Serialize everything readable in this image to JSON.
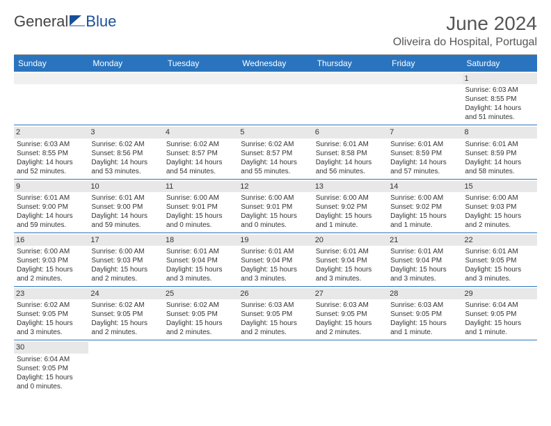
{
  "logo": {
    "text1": "General",
    "text2": "Blue"
  },
  "title": "June 2024",
  "subtitle": "Oliveira do Hospital, Portugal",
  "calendar": {
    "header_bg": "#2a74bf",
    "header_fg": "#ffffff",
    "day_bg": "#e8e8e8",
    "border_color": "#2a74bf",
    "headers": [
      "Sunday",
      "Monday",
      "Tuesday",
      "Wednesday",
      "Thursday",
      "Friday",
      "Saturday"
    ],
    "weeks": [
      [
        {
          "empty": true
        },
        {
          "empty": true
        },
        {
          "empty": true
        },
        {
          "empty": true
        },
        {
          "empty": true
        },
        {
          "empty": true
        },
        {
          "day": "1",
          "sunrise": "Sunrise: 6:03 AM",
          "sunset": "Sunset: 8:55 PM",
          "daylight": "Daylight: 14 hours and 51 minutes."
        }
      ],
      [
        {
          "day": "2",
          "sunrise": "Sunrise: 6:03 AM",
          "sunset": "Sunset: 8:55 PM",
          "daylight": "Daylight: 14 hours and 52 minutes."
        },
        {
          "day": "3",
          "sunrise": "Sunrise: 6:02 AM",
          "sunset": "Sunset: 8:56 PM",
          "daylight": "Daylight: 14 hours and 53 minutes."
        },
        {
          "day": "4",
          "sunrise": "Sunrise: 6:02 AM",
          "sunset": "Sunset: 8:57 PM",
          "daylight": "Daylight: 14 hours and 54 minutes."
        },
        {
          "day": "5",
          "sunrise": "Sunrise: 6:02 AM",
          "sunset": "Sunset: 8:57 PM",
          "daylight": "Daylight: 14 hours and 55 minutes."
        },
        {
          "day": "6",
          "sunrise": "Sunrise: 6:01 AM",
          "sunset": "Sunset: 8:58 PM",
          "daylight": "Daylight: 14 hours and 56 minutes."
        },
        {
          "day": "7",
          "sunrise": "Sunrise: 6:01 AM",
          "sunset": "Sunset: 8:59 PM",
          "daylight": "Daylight: 14 hours and 57 minutes."
        },
        {
          "day": "8",
          "sunrise": "Sunrise: 6:01 AM",
          "sunset": "Sunset: 8:59 PM",
          "daylight": "Daylight: 14 hours and 58 minutes."
        }
      ],
      [
        {
          "day": "9",
          "sunrise": "Sunrise: 6:01 AM",
          "sunset": "Sunset: 9:00 PM",
          "daylight": "Daylight: 14 hours and 59 minutes."
        },
        {
          "day": "10",
          "sunrise": "Sunrise: 6:01 AM",
          "sunset": "Sunset: 9:00 PM",
          "daylight": "Daylight: 14 hours and 59 minutes."
        },
        {
          "day": "11",
          "sunrise": "Sunrise: 6:00 AM",
          "sunset": "Sunset: 9:01 PM",
          "daylight": "Daylight: 15 hours and 0 minutes."
        },
        {
          "day": "12",
          "sunrise": "Sunrise: 6:00 AM",
          "sunset": "Sunset: 9:01 PM",
          "daylight": "Daylight: 15 hours and 0 minutes."
        },
        {
          "day": "13",
          "sunrise": "Sunrise: 6:00 AM",
          "sunset": "Sunset: 9:02 PM",
          "daylight": "Daylight: 15 hours and 1 minute."
        },
        {
          "day": "14",
          "sunrise": "Sunrise: 6:00 AM",
          "sunset": "Sunset: 9:02 PM",
          "daylight": "Daylight: 15 hours and 1 minute."
        },
        {
          "day": "15",
          "sunrise": "Sunrise: 6:00 AM",
          "sunset": "Sunset: 9:03 PM",
          "daylight": "Daylight: 15 hours and 2 minutes."
        }
      ],
      [
        {
          "day": "16",
          "sunrise": "Sunrise: 6:00 AM",
          "sunset": "Sunset: 9:03 PM",
          "daylight": "Daylight: 15 hours and 2 minutes."
        },
        {
          "day": "17",
          "sunrise": "Sunrise: 6:00 AM",
          "sunset": "Sunset: 9:03 PM",
          "daylight": "Daylight: 15 hours and 2 minutes."
        },
        {
          "day": "18",
          "sunrise": "Sunrise: 6:01 AM",
          "sunset": "Sunset: 9:04 PM",
          "daylight": "Daylight: 15 hours and 3 minutes."
        },
        {
          "day": "19",
          "sunrise": "Sunrise: 6:01 AM",
          "sunset": "Sunset: 9:04 PM",
          "daylight": "Daylight: 15 hours and 3 minutes."
        },
        {
          "day": "20",
          "sunrise": "Sunrise: 6:01 AM",
          "sunset": "Sunset: 9:04 PM",
          "daylight": "Daylight: 15 hours and 3 minutes."
        },
        {
          "day": "21",
          "sunrise": "Sunrise: 6:01 AM",
          "sunset": "Sunset: 9:04 PM",
          "daylight": "Daylight: 15 hours and 3 minutes."
        },
        {
          "day": "22",
          "sunrise": "Sunrise: 6:01 AM",
          "sunset": "Sunset: 9:05 PM",
          "daylight": "Daylight: 15 hours and 3 minutes."
        }
      ],
      [
        {
          "day": "23",
          "sunrise": "Sunrise: 6:02 AM",
          "sunset": "Sunset: 9:05 PM",
          "daylight": "Daylight: 15 hours and 3 minutes."
        },
        {
          "day": "24",
          "sunrise": "Sunrise: 6:02 AM",
          "sunset": "Sunset: 9:05 PM",
          "daylight": "Daylight: 15 hours and 2 minutes."
        },
        {
          "day": "25",
          "sunrise": "Sunrise: 6:02 AM",
          "sunset": "Sunset: 9:05 PM",
          "daylight": "Daylight: 15 hours and 2 minutes."
        },
        {
          "day": "26",
          "sunrise": "Sunrise: 6:03 AM",
          "sunset": "Sunset: 9:05 PM",
          "daylight": "Daylight: 15 hours and 2 minutes."
        },
        {
          "day": "27",
          "sunrise": "Sunrise: 6:03 AM",
          "sunset": "Sunset: 9:05 PM",
          "daylight": "Daylight: 15 hours and 2 minutes."
        },
        {
          "day": "28",
          "sunrise": "Sunrise: 6:03 AM",
          "sunset": "Sunset: 9:05 PM",
          "daylight": "Daylight: 15 hours and 1 minute."
        },
        {
          "day": "29",
          "sunrise": "Sunrise: 6:04 AM",
          "sunset": "Sunset: 9:05 PM",
          "daylight": "Daylight: 15 hours and 1 minute."
        }
      ],
      [
        {
          "day": "30",
          "sunrise": "Sunrise: 6:04 AM",
          "sunset": "Sunset: 9:05 PM",
          "daylight": "Daylight: 15 hours and 0 minutes."
        },
        {
          "empty": true
        },
        {
          "empty": true
        },
        {
          "empty": true
        },
        {
          "empty": true
        },
        {
          "empty": true
        },
        {
          "empty": true
        }
      ]
    ]
  }
}
